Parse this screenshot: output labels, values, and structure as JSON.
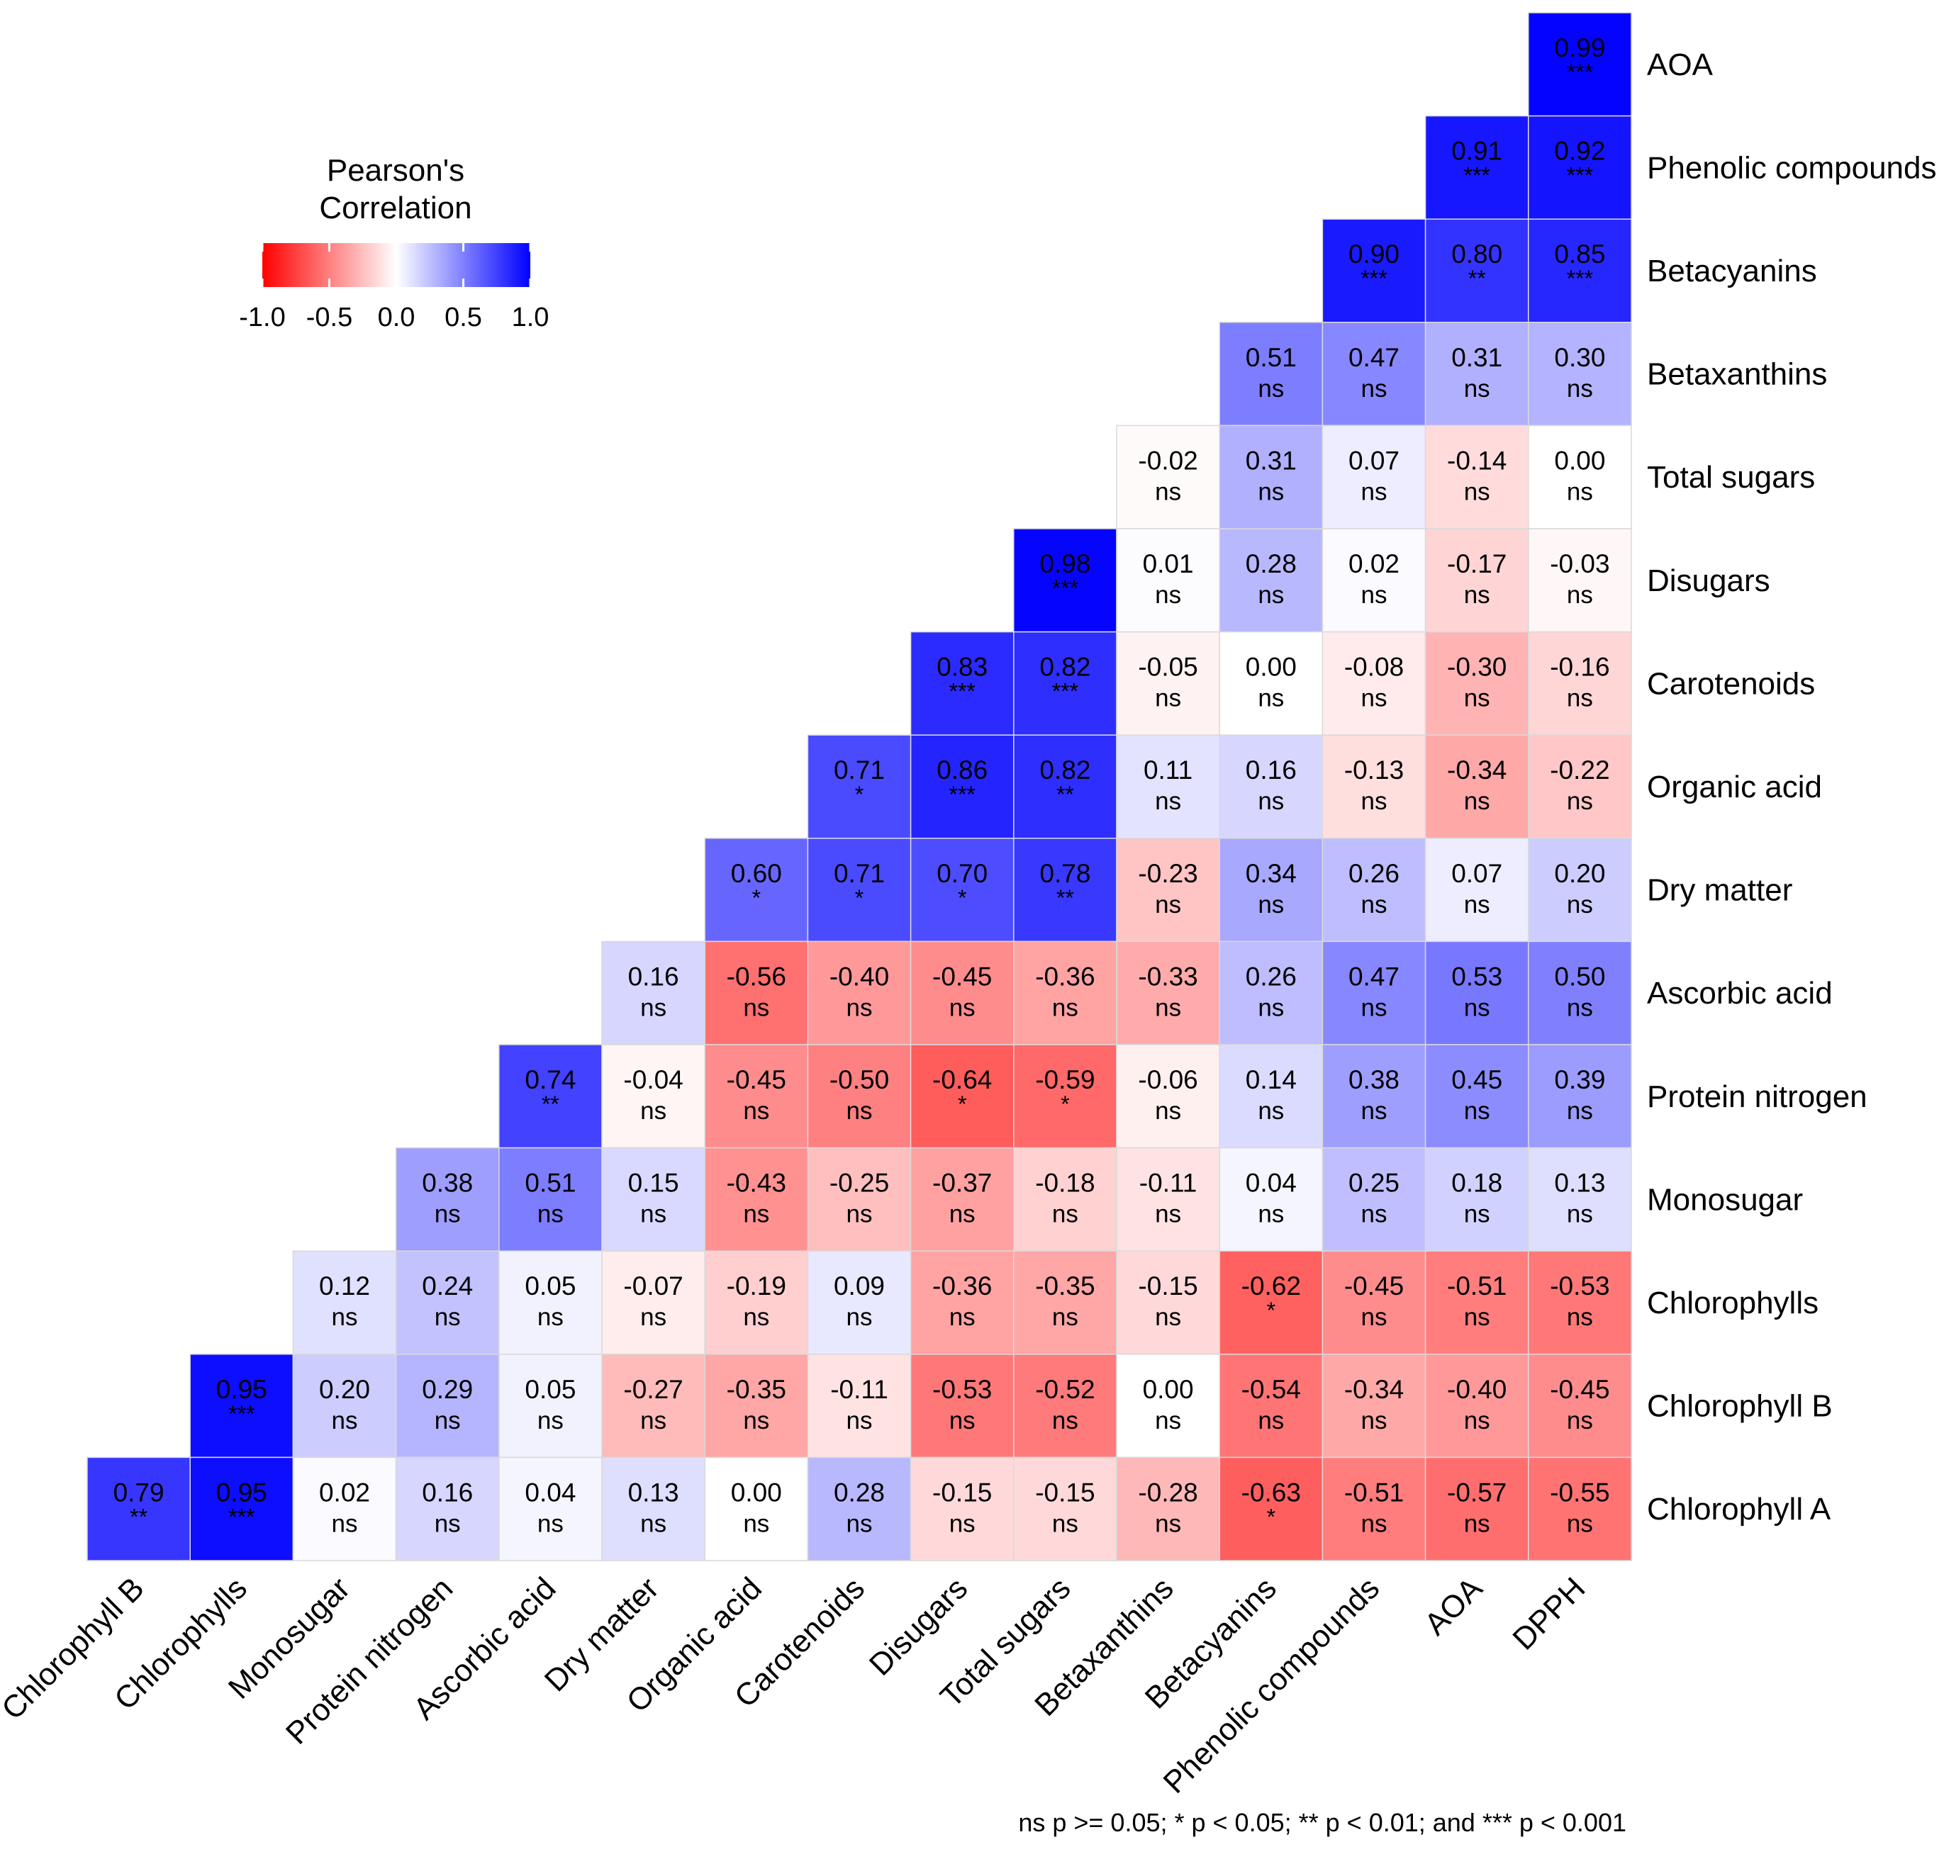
{
  "chart_data": {
    "type": "heatmap",
    "rows": [
      "AOA",
      "Phenolic compounds",
      "Betacyanins",
      "Betaxanthins",
      "Total sugars",
      "Disugars",
      "Carotenoids",
      "Organic acid",
      "Dry matter",
      "Ascorbic acid",
      "Protein nitrogen",
      "Monosugar",
      "Chlorophylls",
      "Chlorophyll B",
      "Chlorophyll A"
    ],
    "columns": [
      "Chlorophyll B",
      "Chlorophylls",
      "Monosugar",
      "Protein nitrogen",
      "Ascorbic acid",
      "Dry matter",
      "Organic acid",
      "Carotenoids",
      "Disugars",
      "Total sugars",
      "Betaxanthins",
      "Betacyanins",
      "Phenolic compounds",
      "AOA",
      "DPPH"
    ],
    "values": [
      [
        null,
        null,
        null,
        null,
        null,
        null,
        null,
        null,
        null,
        null,
        null,
        null,
        null,
        null,
        "0.99"
      ],
      [
        null,
        null,
        null,
        null,
        null,
        null,
        null,
        null,
        null,
        null,
        null,
        null,
        null,
        "0.91",
        "0.92"
      ],
      [
        null,
        null,
        null,
        null,
        null,
        null,
        null,
        null,
        null,
        null,
        null,
        null,
        "0.90",
        "0.80",
        "0.85"
      ],
      [
        null,
        null,
        null,
        null,
        null,
        null,
        null,
        null,
        null,
        null,
        null,
        "0.51",
        "0.47",
        "0.31",
        "0.30"
      ],
      [
        null,
        null,
        null,
        null,
        null,
        null,
        null,
        null,
        null,
        null,
        "-0.02",
        "0.31",
        "0.07",
        "-0.14",
        "0.00"
      ],
      [
        null,
        null,
        null,
        null,
        null,
        null,
        null,
        null,
        null,
        "0.98",
        "0.01",
        "0.28",
        "0.02",
        "-0.17",
        "-0.03"
      ],
      [
        null,
        null,
        null,
        null,
        null,
        null,
        null,
        null,
        "0.83",
        "0.82",
        "-0.05",
        "0.00",
        "-0.08",
        "-0.30",
        "-0.16"
      ],
      [
        null,
        null,
        null,
        null,
        null,
        null,
        null,
        "0.71",
        "0.86",
        "0.82",
        "0.11",
        "0.16",
        "-0.13",
        "-0.34",
        "-0.22"
      ],
      [
        null,
        null,
        null,
        null,
        null,
        null,
        "0.60",
        "0.71",
        "0.70",
        "0.78",
        "-0.23",
        "0.34",
        "0.26",
        "0.07",
        "0.20"
      ],
      [
        null,
        null,
        null,
        null,
        null,
        "0.16",
        "-0.56",
        "-0.40",
        "-0.45",
        "-0.36",
        "-0.33",
        "0.26",
        "0.47",
        "0.53",
        "0.50"
      ],
      [
        null,
        null,
        null,
        null,
        "0.74",
        "-0.04",
        "-0.45",
        "-0.50",
        "-0.64",
        "-0.59",
        "-0.06",
        "0.14",
        "0.38",
        "0.45",
        "0.39"
      ],
      [
        null,
        null,
        null,
        "0.38",
        "0.51",
        "0.15",
        "-0.43",
        "-0.25",
        "-0.37",
        "-0.18",
        "-0.11",
        "0.04",
        "0.25",
        "0.18",
        "0.13"
      ],
      [
        null,
        null,
        "0.12",
        "0.24",
        "0.05",
        "-0.07",
        "-0.19",
        "0.09",
        "-0.36",
        "-0.35",
        "-0.15",
        "-0.62",
        "-0.45",
        "-0.51",
        "-0.53"
      ],
      [
        null,
        "0.95",
        "0.20",
        "0.29",
        "0.05",
        "-0.27",
        "-0.35",
        "-0.11",
        "-0.53",
        "-0.52",
        "0.00",
        "-0.54",
        "-0.34",
        "-0.40",
        "-0.45"
      ],
      [
        "0.79",
        "0.95",
        "0.02",
        "0.16",
        "0.04",
        "0.13",
        "0.00",
        "0.28",
        "-0.15",
        "-0.15",
        "-0.28",
        "-0.63",
        "-0.51",
        "-0.57",
        "-0.55"
      ]
    ],
    "significance": [
      [
        null,
        null,
        null,
        null,
        null,
        null,
        null,
        null,
        null,
        null,
        null,
        null,
        null,
        null,
        "***"
      ],
      [
        null,
        null,
        null,
        null,
        null,
        null,
        null,
        null,
        null,
        null,
        null,
        null,
        null,
        "***",
        "***"
      ],
      [
        null,
        null,
        null,
        null,
        null,
        null,
        null,
        null,
        null,
        null,
        null,
        null,
        "***",
        "**",
        "***"
      ],
      [
        null,
        null,
        null,
        null,
        null,
        null,
        null,
        null,
        null,
        null,
        null,
        "ns",
        "ns",
        "ns",
        "ns"
      ],
      [
        null,
        null,
        null,
        null,
        null,
        null,
        null,
        null,
        null,
        null,
        "ns",
        "ns",
        "ns",
        "ns",
        "ns"
      ],
      [
        null,
        null,
        null,
        null,
        null,
        null,
        null,
        null,
        null,
        "***",
        "ns",
        "ns",
        "ns",
        "ns",
        "ns"
      ],
      [
        null,
        null,
        null,
        null,
        null,
        null,
        null,
        null,
        "***",
        "***",
        "ns",
        "ns",
        "ns",
        "ns",
        "ns"
      ],
      [
        null,
        null,
        null,
        null,
        null,
        null,
        null,
        "*",
        "***",
        "**",
        "ns",
        "ns",
        "ns",
        "ns",
        "ns"
      ],
      [
        null,
        null,
        null,
        null,
        null,
        null,
        "*",
        "*",
        "*",
        "**",
        "ns",
        "ns",
        "ns",
        "ns",
        "ns"
      ],
      [
        null,
        null,
        null,
        null,
        null,
        "ns",
        "ns",
        "ns",
        "ns",
        "ns",
        "ns",
        "ns",
        "ns",
        "ns",
        "ns"
      ],
      [
        null,
        null,
        null,
        null,
        "**",
        "ns",
        "ns",
        "ns",
        "*",
        "*",
        "ns",
        "ns",
        "ns",
        "ns",
        "ns"
      ],
      [
        null,
        null,
        null,
        "ns",
        "ns",
        "ns",
        "ns",
        "ns",
        "ns",
        "ns",
        "ns",
        "ns",
        "ns",
        "ns",
        "ns"
      ],
      [
        null,
        null,
        "ns",
        "ns",
        "ns",
        "ns",
        "ns",
        "ns",
        "ns",
        "ns",
        "ns",
        "*",
        "ns",
        "ns",
        "ns"
      ],
      [
        null,
        "***",
        "ns",
        "ns",
        "ns",
        "ns",
        "ns",
        "ns",
        "ns",
        "ns",
        "ns",
        "ns",
        "ns",
        "ns",
        "ns"
      ],
      [
        "**",
        "***",
        "ns",
        "ns",
        "ns",
        "ns",
        "ns",
        "ns",
        "ns",
        "ns",
        "ns",
        "*",
        "ns",
        "ns",
        "ns"
      ]
    ],
    "legend": {
      "title_line1": "Pearson's",
      "title_line2": "Correlation",
      "ticks": [
        "-1.0",
        "-0.5",
        "0.0",
        "0.5",
        "1.0"
      ],
      "tick_values": [
        -1.0,
        -0.5,
        0.0,
        0.5,
        1.0
      ],
      "range": [
        -1.0,
        1.0
      ],
      "placement": "top-left"
    },
    "color_scale": {
      "low": "#ff0000",
      "mid": "#ffffff",
      "high": "#0000ff"
    },
    "footnote": "ns p >= 0.05; * p < 0.05; ** p < 0.01; and *** p < 0.001"
  }
}
